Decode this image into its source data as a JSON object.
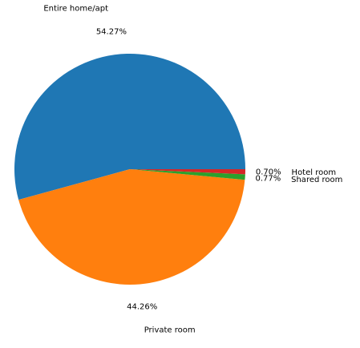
{
  "chart_data": {
    "type": "pie",
    "start_angle_deg": 0,
    "direction": "counterclockwise",
    "slices": [
      {
        "label": "Entire home/apt",
        "value": 54.27,
        "pct_label": "54.27%",
        "color": "#1f77b4"
      },
      {
        "label": "Private room",
        "value": 44.26,
        "pct_label": "44.26%",
        "color": "#ff7f0e"
      },
      {
        "label": "Shared room",
        "value": 0.77,
        "pct_label": "0.77%",
        "color": "#2ca02c"
      },
      {
        "label": "Hotel room",
        "value": 0.7,
        "pct_label": "0.70%",
        "color": "#d62728"
      }
    ]
  }
}
